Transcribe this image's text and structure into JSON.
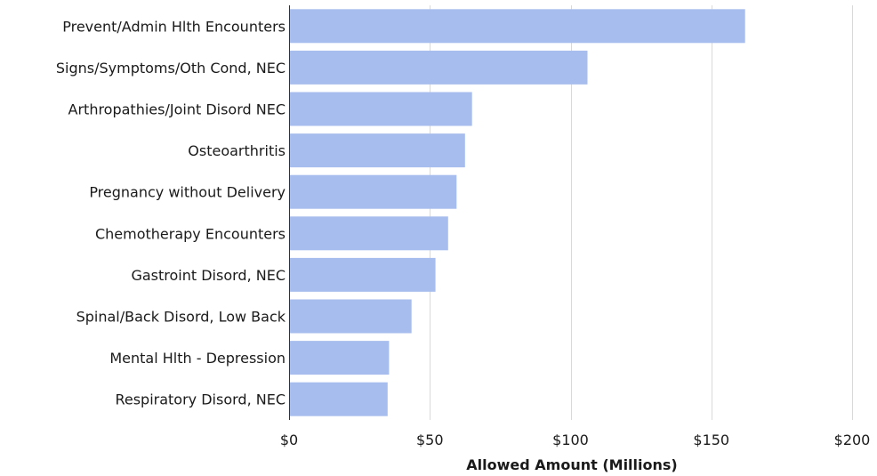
{
  "chart_data": {
    "type": "bar",
    "orientation": "horizontal",
    "categories": [
      "Prevent/Admin Hlth Encounters",
      "Signs/Symptoms/Oth Cond, NEC",
      "Arthropathies/Joint Disord NEC",
      "Osteoarthritis",
      "Pregnancy without Delivery",
      "Chemotherapy Encounters",
      "Gastroint Disord, NEC",
      "Spinal/Back Disord, Low Back",
      "Mental Hlth - Depression",
      "Respiratory Disord, NEC"
    ],
    "values": [
      162,
      106,
      65,
      62.5,
      59.5,
      56.5,
      52,
      43.5,
      35.5,
      35
    ],
    "title": "",
    "xlabel": "Allowed Amount (Millions)",
    "ylabel": "",
    "xlim": [
      0,
      200
    ],
    "xticks": [
      0,
      50,
      100,
      150,
      200
    ],
    "xtick_labels": [
      "$0",
      "$50",
      "$100",
      "$150",
      "$200"
    ],
    "grid": "vertical",
    "legend": "none",
    "bar_color": "#a7bded",
    "grid_color": "#d9d9d9",
    "axis_color": "#333333"
  }
}
